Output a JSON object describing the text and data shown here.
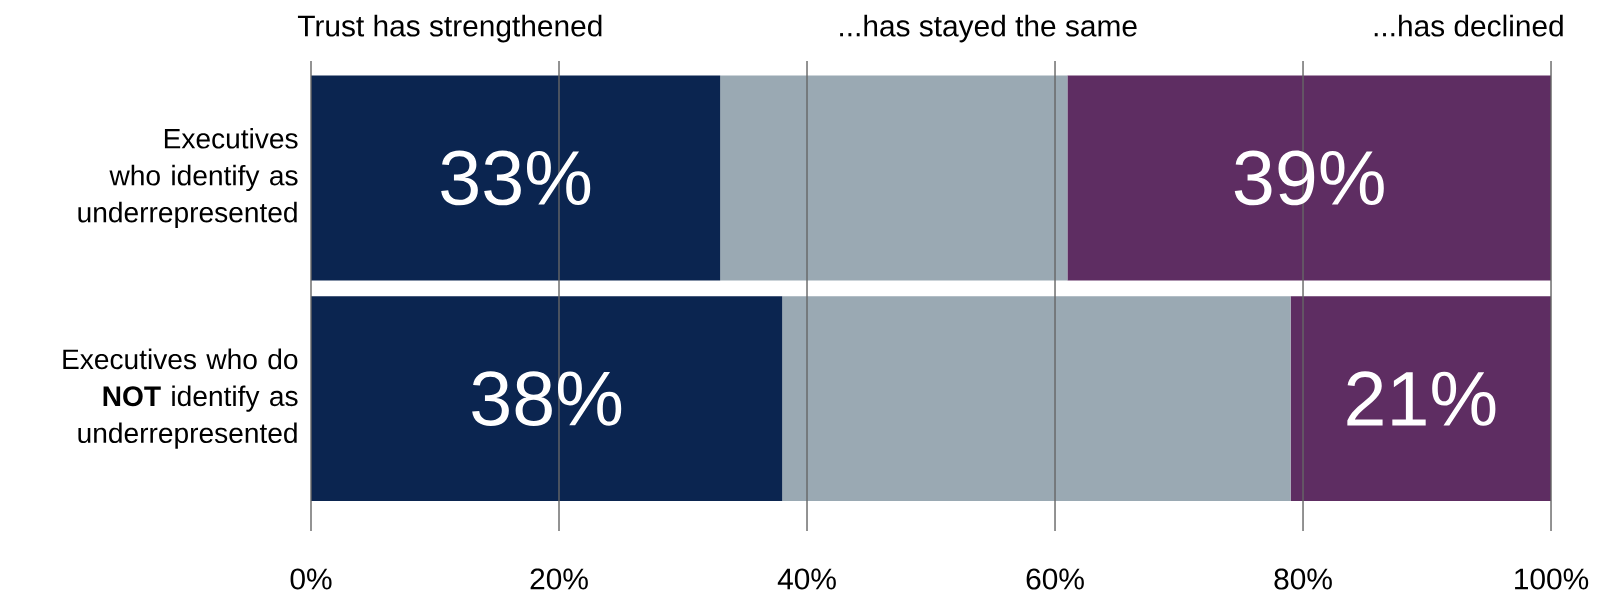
{
  "chart_data": {
    "type": "bar",
    "orientation": "horizontal",
    "stacked": true,
    "categories": [
      "Executives who identify as underrepresented",
      "Executives who do **NOT** identify as underrepresented"
    ],
    "series": [
      {
        "name": "Trust has strengthened",
        "color": "#0b2550",
        "values": [
          33,
          38
        ],
        "value_labels": [
          "33%",
          "38%"
        ]
      },
      {
        "name": "...has stayed the same",
        "color": "#9aa9b3",
        "values": [
          28,
          41
        ],
        "value_labels": [
          null,
          null
        ]
      },
      {
        "name": "...has declined",
        "color": "#5e2d62",
        "values": [
          39,
          21
        ],
        "value_labels": [
          "39%",
          "21%"
        ]
      }
    ],
    "xlim": [
      0,
      100
    ],
    "xticks": [
      {
        "value": 0,
        "label": "0%"
      },
      {
        "value": 20,
        "label": "20%"
      },
      {
        "value": 40,
        "label": "40%"
      },
      {
        "value": 60,
        "label": "60%"
      },
      {
        "value": 80,
        "label": "80%"
      },
      {
        "value": 100,
        "label": "100%"
      }
    ],
    "grid": "x",
    "legend": "top"
  }
}
